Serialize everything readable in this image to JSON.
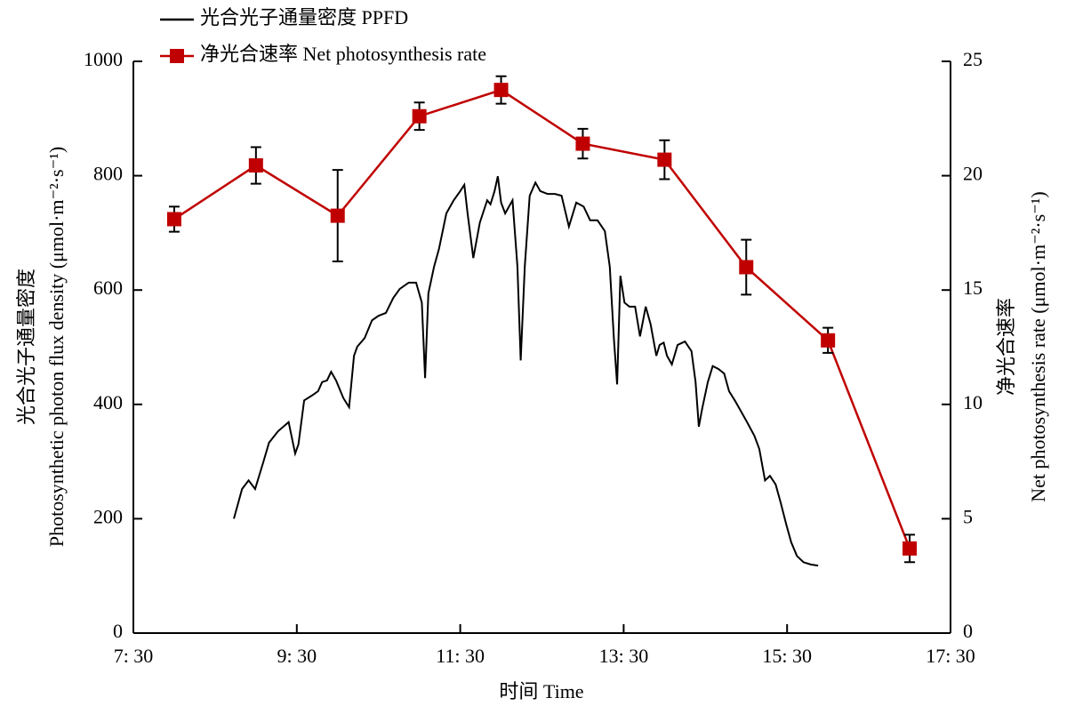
{
  "chart_data": {
    "type": "line",
    "xlabel": "时间 Time",
    "ylabel": [
      "光合光子通量密度",
      "Photosynthetic photon flux density (μmol·m⁻²·s⁻¹)"
    ],
    "y2label": [
      "净光合速率",
      "Net photosynthesis rate (μmol·m⁻²·s⁻¹)"
    ],
    "xlim": [
      7.5,
      17.5
    ],
    "xticks": [
      {
        "value": 7.5,
        "label": "7: 30"
      },
      {
        "value": 9.5,
        "label": "9: 30"
      },
      {
        "value": 11.5,
        "label": "11: 30"
      },
      {
        "value": 13.5,
        "label": "13: 30"
      },
      {
        "value": 15.5,
        "label": "15: 30"
      },
      {
        "value": 17.5,
        "label": "17: 30"
      }
    ],
    "ylim": [
      0,
      1000
    ],
    "yticks": [
      0,
      200,
      400,
      600,
      800,
      1000
    ],
    "y2lim": [
      0,
      25
    ],
    "y2ticks": [
      0,
      5,
      10,
      15,
      20,
      25
    ],
    "legend": "top-left",
    "series": [
      {
        "name": "光合光子通量密度 PPFD",
        "color": "#000000",
        "x": [
          8.73,
          8.83,
          8.91,
          8.99,
          9.09,
          9.16,
          9.27,
          9.4,
          9.48,
          9.52,
          9.59,
          9.68,
          9.76,
          9.81,
          9.87,
          9.92,
          9.98,
          10.07,
          10.14,
          10.2,
          10.24,
          10.33,
          10.42,
          10.5,
          10.59,
          10.68,
          10.76,
          10.87,
          10.96,
          11.03,
          11.07,
          11.11,
          11.18,
          11.24,
          11.33,
          11.42,
          11.5,
          11.55,
          11.59,
          11.66,
          11.74,
          11.83,
          11.87,
          11.92,
          11.96,
          12.0,
          12.05,
          12.14,
          12.2,
          12.24,
          12.29,
          12.35,
          12.42,
          12.48,
          12.57,
          12.66,
          12.74,
          12.83,
          12.92,
          13.01,
          13.09,
          13.18,
          13.27,
          13.33,
          13.38,
          13.42,
          13.46,
          13.51,
          13.57,
          13.64,
          13.7,
          13.77,
          13.83,
          13.9,
          13.94,
          13.99,
          14.03,
          14.09,
          14.16,
          14.25,
          14.33,
          14.38,
          14.42,
          14.46,
          14.53,
          14.59,
          14.66,
          14.73,
          14.79,
          14.86,
          14.92,
          15.01,
          15.1,
          15.16,
          15.23,
          15.29,
          15.36,
          15.42,
          15.49,
          15.55,
          15.62,
          15.7,
          15.79,
          15.88
        ],
        "values": [
          200,
          252,
          267,
          252,
          299,
          333,
          353,
          369,
          314,
          330,
          407,
          415,
          423,
          439,
          442,
          457,
          442,
          411,
          395,
          485,
          501,
          516,
          547,
          555,
          560,
          586,
          602,
          613,
          613,
          578,
          446,
          594,
          641,
          672,
          734,
          757,
          773,
          784,
          734,
          656,
          718,
          757,
          750,
          773,
          799,
          753,
          734,
          757,
          641,
          477,
          641,
          765,
          788,
          773,
          768,
          768,
          765,
          711,
          753,
          746,
          722,
          722,
          703,
          641,
          516,
          435,
          625,
          578,
          571,
          571,
          519,
          571,
          540,
          485,
          504,
          508,
          485,
          470,
          504,
          510,
          493,
          439,
          361,
          392,
          439,
          467,
          462,
          454,
          423,
          407,
          392,
          369,
          345,
          322,
          267,
          275,
          260,
          229,
          190,
          159,
          135,
          124,
          120,
          118
        ]
      },
      {
        "name": "净光合速率 Net photosynthesis rate",
        "color": "#c00000",
        "axis": "y2",
        "x": [
          8,
          9,
          10,
          11,
          12,
          13,
          14,
          15,
          16,
          17
        ],
        "values": [
          18.1,
          20.45,
          18.25,
          22.6,
          23.75,
          21.4,
          20.7,
          16.0,
          12.8,
          3.7
        ],
        "errors": [
          0.55,
          0.8,
          2.0,
          0.6,
          0.6,
          0.65,
          0.85,
          1.2,
          0.55,
          0.6
        ]
      }
    ]
  }
}
